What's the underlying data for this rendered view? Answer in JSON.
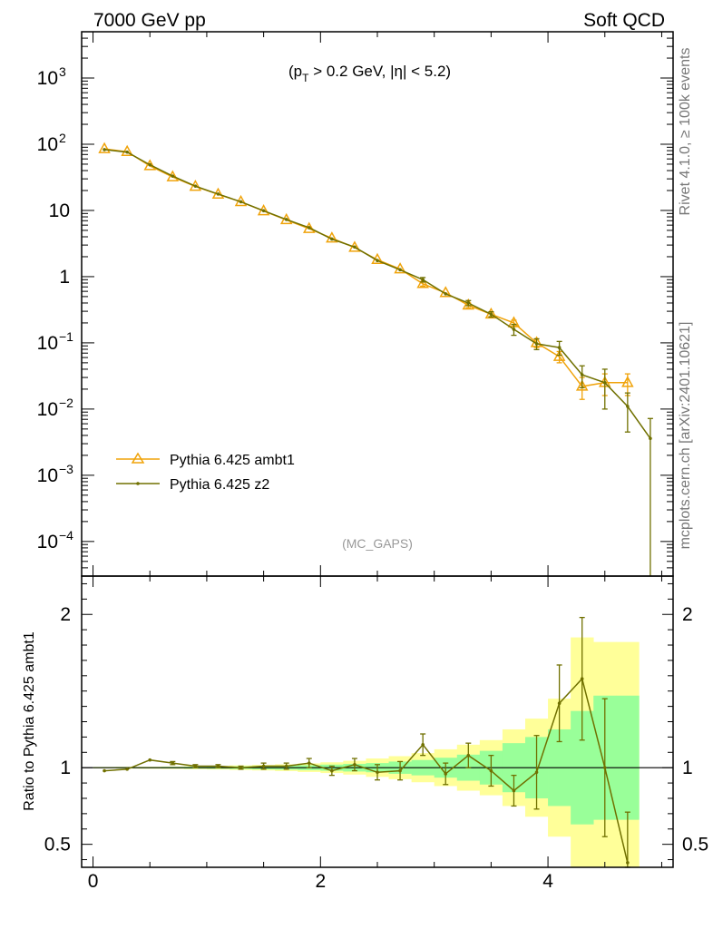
{
  "header": {
    "left": "7000 GeV pp",
    "right": "Soft QCD"
  },
  "side_labels": {
    "rivet": "Rivet 4.1.0, ≥ 100k events",
    "mcplots": "mcplots.cern.ch [arXiv:2401.10621]"
  },
  "cut_label": {
    "open": "(p",
    "sub": "T",
    "rest": " > 0.2 GeV, |η| < 5.2)"
  },
  "watermark": "(MC_GAPS)",
  "ratio_ylabel": "Ratio to Pythia 6.425 ambt1",
  "colors": {
    "ambt1": "#f0a30a",
    "z2": "#707000",
    "band_yellow": "#ffff99",
    "band_green": "#99ff99"
  },
  "chart_data": [
    {
      "type": "line",
      "panel": "main",
      "yscale": "log",
      "xlim": [
        -0.1,
        5.1
      ],
      "ylim": [
        3e-05,
        5000
      ],
      "xticks": [
        "0",
        "2",
        "4"
      ],
      "yticks": [
        {
          "value": 0.0001,
          "base": "10",
          "exp": "−4"
        },
        {
          "value": 0.001,
          "base": "10",
          "exp": "−3"
        },
        {
          "value": 0.01,
          "base": "10",
          "exp": "−2"
        },
        {
          "value": 0.1,
          "base": "10",
          "exp": "−1"
        },
        {
          "value": 1,
          "base": "1",
          "exp": ""
        },
        {
          "value": 10,
          "base": "10",
          "exp": ""
        },
        {
          "value": 100,
          "base": "10",
          "exp": "2"
        },
        {
          "value": 1000,
          "base": "10",
          "exp": "3"
        }
      ],
      "legend_position": "middle-left",
      "series": [
        {
          "name": "Pythia 6.425 ambt1",
          "marker": "triangle",
          "x": [
            0.1,
            0.3,
            0.5,
            0.7,
            0.9,
            1.1,
            1.3,
            1.5,
            1.7,
            1.9,
            2.1,
            2.3,
            2.5,
            2.7,
            2.9,
            3.1,
            3.3,
            3.5,
            3.7,
            3.9,
            4.1,
            4.3,
            4.5,
            4.7
          ],
          "y": [
            85,
            77,
            47,
            32,
            23,
            17.5,
            13.5,
            9.8,
            7.2,
            5.3,
            3.8,
            2.75,
            1.8,
            1.3,
            0.78,
            0.57,
            0.37,
            0.27,
            0.2,
            0.1,
            0.062,
            0.022,
            0.025,
            0.025
          ],
          "err": [
            0,
            0,
            0,
            0,
            0,
            0,
            0,
            0,
            0,
            0,
            0,
            0,
            0,
            0,
            0.06,
            0,
            0.03,
            0.02,
            0.02,
            0.015,
            0.012,
            0.008,
            0.009,
            0.009
          ]
        },
        {
          "name": "Pythia 6.425 z2",
          "marker": "dot",
          "x": [
            0.1,
            0.3,
            0.5,
            0.7,
            0.9,
            1.1,
            1.3,
            1.5,
            1.7,
            1.9,
            2.1,
            2.3,
            2.5,
            2.7,
            2.9,
            3.1,
            3.3,
            3.5,
            3.7,
            3.9,
            4.1,
            4.3,
            4.5,
            4.7,
            4.9
          ],
          "y": [
            83,
            76,
            49,
            33,
            23.3,
            17.7,
            13.5,
            9.9,
            7.3,
            5.5,
            3.7,
            2.8,
            1.75,
            1.27,
            0.9,
            0.55,
            0.4,
            0.27,
            0.16,
            0.097,
            0.085,
            0.033,
            0.025,
            0.011,
            0.0036
          ],
          "err": [
            0,
            0,
            0,
            0,
            0,
            0,
            0,
            0,
            0,
            0,
            0,
            0,
            0,
            0,
            0.07,
            0,
            0.035,
            0.025,
            0.03,
            0.018,
            0.02,
            0.012,
            0.015,
            0.0065,
            0.0036
          ]
        }
      ]
    },
    {
      "type": "line",
      "panel": "ratio",
      "xlim": [
        -0.1,
        5.1
      ],
      "ylim": [
        0.35,
        2.25
      ],
      "xticks": [
        "0",
        "2",
        "4"
      ],
      "yticks": [
        "0.5",
        "1",
        "2"
      ],
      "ylabel": "Ratio to Pythia 6.425 ambt1",
      "bands": {
        "edges": [
          0,
          0.2,
          0.4,
          0.6,
          0.8,
          1.0,
          1.2,
          1.4,
          1.6,
          1.8,
          2.0,
          2.2,
          2.4,
          2.6,
          2.8,
          3.0,
          3.2,
          3.4,
          3.6,
          3.8,
          4.0,
          4.2,
          4.4,
          4.6,
          4.8
        ],
        "yellow_lo": [
          0.995,
          0.994,
          0.993,
          0.992,
          0.99,
          0.988,
          0.985,
          0.982,
          0.978,
          0.972,
          0.965,
          0.955,
          0.94,
          0.925,
          0.905,
          0.88,
          0.85,
          0.82,
          0.75,
          0.68,
          0.55,
          0.35,
          0.35,
          0.35
        ],
        "yellow_hi": [
          1.005,
          1.006,
          1.007,
          1.008,
          1.01,
          1.012,
          1.015,
          1.018,
          1.022,
          1.028,
          1.035,
          1.045,
          1.06,
          1.075,
          1.095,
          1.12,
          1.15,
          1.18,
          1.25,
          1.32,
          1.45,
          1.85,
          1.82,
          1.82
        ],
        "green_lo": [
          0.997,
          0.996,
          0.996,
          0.995,
          0.994,
          0.993,
          0.991,
          0.989,
          0.987,
          0.984,
          0.98,
          0.975,
          0.97,
          0.96,
          0.95,
          0.935,
          0.915,
          0.89,
          0.84,
          0.8,
          0.75,
          0.63,
          0.66,
          0.66
        ],
        "green_hi": [
          1.003,
          1.004,
          1.004,
          1.005,
          1.006,
          1.007,
          1.009,
          1.011,
          1.013,
          1.016,
          1.02,
          1.025,
          1.03,
          1.04,
          1.05,
          1.065,
          1.085,
          1.11,
          1.16,
          1.2,
          1.25,
          1.37,
          1.47,
          1.47
        ]
      },
      "series": [
        {
          "name": "Pythia 6.425 z2",
          "x": [
            0.1,
            0.3,
            0.5,
            0.7,
            0.9,
            1.1,
            1.3,
            1.5,
            1.7,
            1.9,
            2.1,
            2.3,
            2.5,
            2.7,
            2.9,
            3.1,
            3.3,
            3.5,
            3.7,
            3.9,
            4.1,
            4.3,
            4.5,
            4.7
          ],
          "y": [
            0.98,
            0.99,
            1.05,
            1.03,
            1.01,
            1.01,
            1.0,
            1.01,
            1.01,
            1.03,
            0.98,
            1.02,
            0.97,
            0.98,
            1.15,
            0.96,
            1.08,
            0.98,
            0.85,
            0.97,
            1.42,
            1.58,
            1.0,
            0.38
          ],
          "err": [
            0,
            0,
            0,
            0.01,
            0.01,
            0.01,
            0.01,
            0.02,
            0.02,
            0.03,
            0.03,
            0.04,
            0.05,
            0.06,
            0.07,
            0.07,
            0.08,
            0.1,
            0.1,
            0.24,
            0.25,
            0.4,
            0.45,
            0.33
          ]
        }
      ]
    }
  ]
}
